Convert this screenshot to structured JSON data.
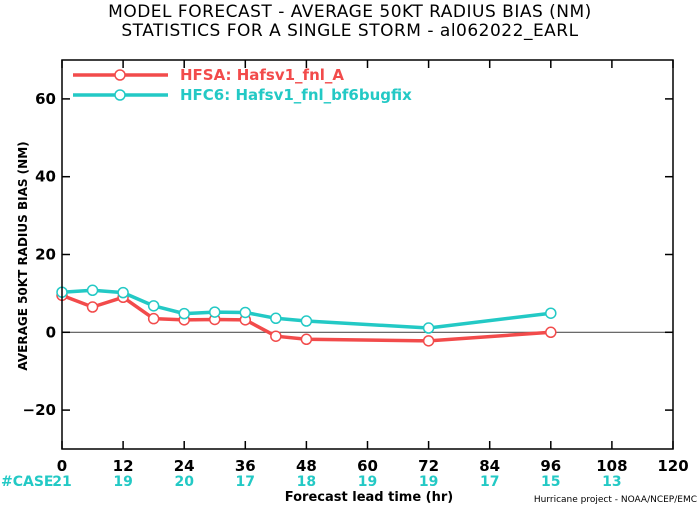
{
  "title_line1": "MODEL FORECAST - AVERAGE 50KT RADIUS BIAS (NM)",
  "title_line2": "STATISTICS FOR A SINGLE STORM - al062022_EARL",
  "credit": "Hurricane project - NOAA/NCEP/EMC",
  "colors": {
    "hfsa": "#f24b4b",
    "hfc6": "#23c9c5",
    "zero_line": "#555555",
    "axis": "#000000"
  },
  "chart_data": {
    "type": "line",
    "xlabel": "Forecast lead time (hr)",
    "ylabel": "AVERAGE 50KT RADIUS BIAS (NM)",
    "xlim": [
      0,
      120
    ],
    "ylim": [
      -30,
      70
    ],
    "x_ticks": [
      0,
      12,
      24,
      36,
      48,
      60,
      72,
      84,
      96,
      108,
      120
    ],
    "y_ticks": [
      -20,
      0,
      20,
      40,
      60
    ],
    "legend_position": "top-left",
    "case_label": "#CASE",
    "case_counts": [
      {
        "x": 0,
        "n": "21"
      },
      {
        "x": 12,
        "n": "19"
      },
      {
        "x": 24,
        "n": "20"
      },
      {
        "x": 36,
        "n": "17"
      },
      {
        "x": 48,
        "n": "18"
      },
      {
        "x": 60,
        "n": "19"
      },
      {
        "x": 72,
        "n": "19"
      },
      {
        "x": 84,
        "n": "17"
      },
      {
        "x": 96,
        "n": "15"
      },
      {
        "x": 108,
        "n": "13"
      }
    ],
    "series": [
      {
        "name": "HFSA: Hafsv1_fnl_A",
        "color": "#f24b4b",
        "x": [
          0,
          6,
          12,
          18,
          24,
          30,
          36,
          42,
          48,
          72,
          96
        ],
        "y": [
          9.5,
          6.5,
          9,
          3.5,
          3.2,
          3.3,
          3.2,
          -1,
          -1.8,
          -2.2,
          0
        ]
      },
      {
        "name": "HFC6: Hafsv1_fnl_bf6bugfix",
        "color": "#23c9c5",
        "x": [
          0,
          6,
          12,
          18,
          24,
          30,
          36,
          42,
          48,
          72,
          96
        ],
        "y": [
          10.3,
          10.8,
          10.2,
          6.8,
          4.8,
          5.2,
          5.1,
          3.6,
          2.9,
          1.1,
          4.9
        ]
      }
    ]
  }
}
